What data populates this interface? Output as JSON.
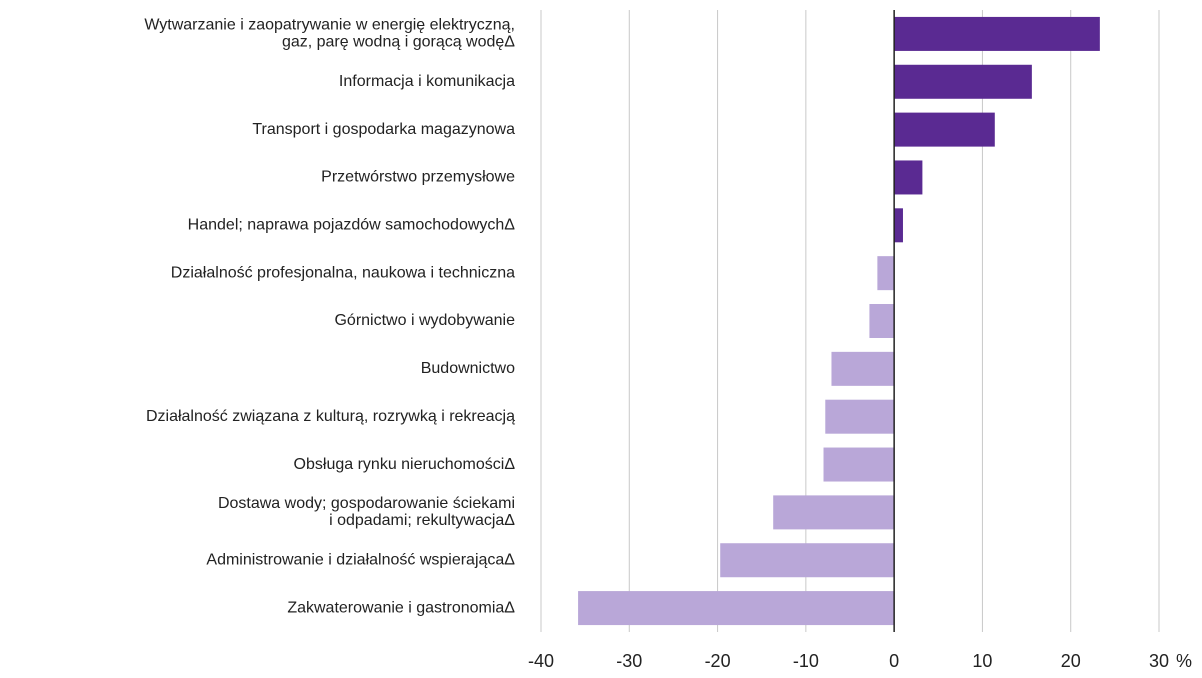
{
  "chart_data": {
    "type": "hbar",
    "categories": [
      "Wytwarzanie i zaopatrywanie w energię elektryczną,\ngaz, parę wodną i gorącą wodęΔ",
      "Informacja i komunikacja",
      "Transport i gospodarka magazynowa",
      "Przetwórstwo przemysłowe",
      "Handel; naprawa pojazdów samochodowychΔ",
      "Działalność profesjonalna, naukowa i techniczna",
      "Górnictwo i wydobywanie",
      "Budownictwo",
      "Działalność związana z kulturą, rozrywką i rekreacją",
      "Obsługa rynku nieruchomościΔ",
      "Dostawa wody; gospodarowanie ściekami\ni odpadami; rekultywacjaΔ",
      "Administrowanie i działalność wspierającaΔ",
      "Zakwaterowanie i gastronomiaΔ"
    ],
    "values": [
      23.3,
      15.6,
      11.4,
      3.2,
      1.0,
      -1.9,
      -2.8,
      -7.1,
      -7.8,
      -8.0,
      -13.7,
      -19.7,
      -35.8
    ],
    "positive_color": "#5a2a92",
    "negative_color": "#b9a7d8",
    "xlim": [
      -40,
      30
    ],
    "xticks": [
      -40,
      -30,
      -20,
      -10,
      0,
      10,
      20,
      30
    ],
    "xlabel": "%",
    "grid": true
  }
}
